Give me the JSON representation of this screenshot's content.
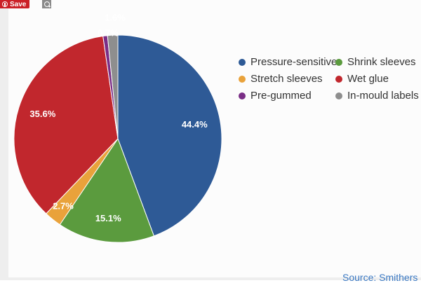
{
  "toolbar": {
    "save_label": "Save",
    "pin_icon": "pinterest-icon",
    "zoom_icon": "magnifier-icon"
  },
  "chart_data": {
    "type": "pie",
    "title": "",
    "series": [
      {
        "name": "Pressure-sensitive",
        "value": 44.4,
        "label": "44.4%",
        "color": "#2e5a96"
      },
      {
        "name": "Shrink sleeves",
        "value": 15.1,
        "label": "15.1%",
        "color": "#5b9b3e"
      },
      {
        "name": "Stretch sleeves",
        "value": 2.7,
        "label": "2.7%",
        "color": "#e9a23b"
      },
      {
        "name": "Wet glue",
        "value": 35.6,
        "label": "35.6%",
        "color": "#c1272d"
      },
      {
        "name": "Pre-gummed",
        "value": 0.7,
        "label": "0.7%",
        "color": "#7a2e86"
      },
      {
        "name": "In-mould labels",
        "value": 1.6,
        "label": "1.6%",
        "color": "#8e8e8e"
      }
    ],
    "legend_placement": "right"
  },
  "legend": {
    "items": [
      {
        "label": "Pressure-sensitive",
        "color": "#2e5a96"
      },
      {
        "label": "Shrink sleeves",
        "color": "#5b9b3e"
      },
      {
        "label": "Stretch sleeves",
        "color": "#e9a23b"
      },
      {
        "label": "Wet glue",
        "color": "#c1272d"
      },
      {
        "label": "Pre-gummed",
        "color": "#7a2e86"
      },
      {
        "label": "In-mould labels",
        "color": "#8e8e8e"
      }
    ]
  },
  "source": "Source: Smithers"
}
